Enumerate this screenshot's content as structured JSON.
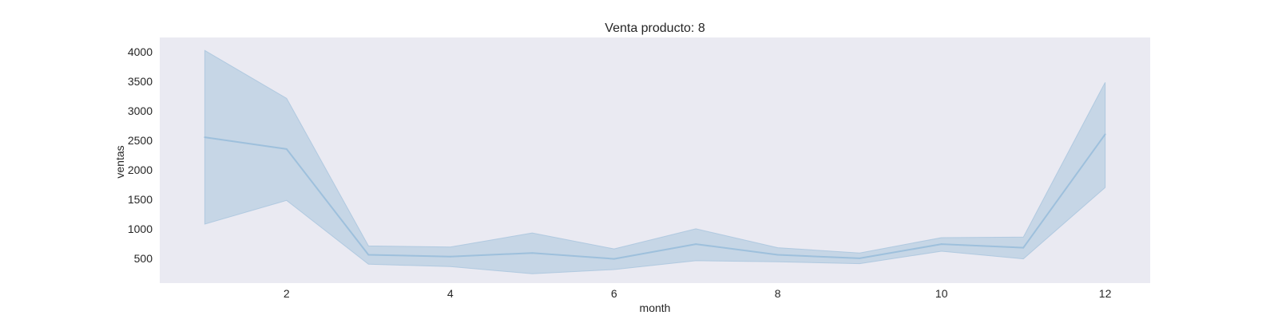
{
  "chart_data": {
    "type": "line",
    "title": "Venta producto: 8",
    "xlabel": "month",
    "ylabel": "ventas",
    "x": [
      1,
      2,
      3,
      4,
      5,
      6,
      7,
      8,
      9,
      10,
      11,
      12
    ],
    "series": [
      {
        "values": [
          2550,
          2350,
          560,
          530,
          590,
          490,
          740,
          560,
          500,
          740,
          680,
          2600
        ],
        "ci_upper": [
          4020,
          3210,
          710,
          690,
          930,
          660,
          1000,
          680,
          590,
          850,
          860,
          3480
        ],
        "ci_lower": [
          1080,
          1480,
          400,
          360,
          240,
          310,
          460,
          440,
          410,
          620,
          490,
          1700
        ]
      }
    ],
    "xticks": [
      2,
      4,
      6,
      8,
      10,
      12
    ],
    "yticks": [
      500,
      1000,
      1500,
      2000,
      2500,
      3000,
      3500,
      4000
    ],
    "xlim": [
      0.45,
      12.55
    ],
    "ylim": [
      80,
      4240
    ],
    "grid": false,
    "colors": {
      "plot_background": "#eaeaf2",
      "line": "#9ec0dc",
      "band": "#a8c4dd"
    }
  }
}
